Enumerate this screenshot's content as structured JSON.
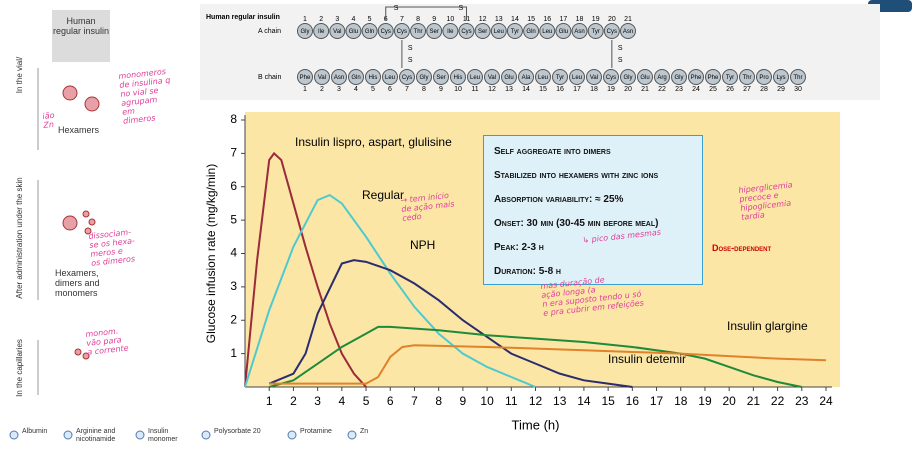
{
  "diagram": {
    "title": "Human regular insulin",
    "a_chain": {
      "label": "A chain",
      "residues": [
        "Gly",
        "Ile",
        "Val",
        "Glu",
        "Gln",
        "Cys",
        "Cys",
        "Thr",
        "Ser",
        "Ile",
        "Cys",
        "Ser",
        "Leu",
        "Tyr",
        "Gln",
        "Leu",
        "Glu",
        "Asn",
        "Tyr",
        "Cys",
        "Asn"
      ],
      "numbers": [
        1,
        2,
        3,
        4,
        5,
        6,
        7,
        8,
        9,
        10,
        11,
        12,
        13,
        14,
        15,
        16,
        17,
        18,
        19,
        20,
        21
      ]
    },
    "b_chain": {
      "label": "B chain",
      "residues": [
        "Phe",
        "Val",
        "Asn",
        "Gln",
        "His",
        "Leu",
        "Cys",
        "Gly",
        "Ser",
        "His",
        "Leu",
        "Val",
        "Glu",
        "Ala",
        "Leu",
        "Tyr",
        "Leu",
        "Val",
        "Cys",
        "Gly",
        "Glu",
        "Arg",
        "Gly",
        "Phe",
        "Phe",
        "Tyr",
        "Thr",
        "Pro",
        "Lys",
        "Thr"
      ],
      "numbers": [
        1,
        2,
        3,
        4,
        5,
        6,
        7,
        8,
        9,
        10,
        11,
        12,
        13,
        14,
        15,
        16,
        17,
        18,
        19,
        20,
        21,
        22,
        23,
        24,
        25,
        26,
        27,
        28,
        29,
        30
      ]
    },
    "disulfide": "S"
  },
  "left_panel": {
    "title": "Human regular insulin",
    "stage_labels": [
      "In the vial/",
      "After administration under the skin",
      "In the capillaries"
    ],
    "form_labels": [
      "Hexamers",
      "Hexamers, dimers and monomers"
    ],
    "legend_items": [
      "Albumin",
      "Arginine and nicotinamide",
      "Insulin monomer",
      "Polysorbate 20",
      "Protamine",
      "Zn"
    ]
  },
  "info_box": {
    "lines": [
      "Self aggregate into dimers",
      "Stabilized into hexamers with zinc ions",
      "Absorption variability: ≈ 25%",
      "Onset: 30 min (30-45 min before meal)",
      "Peak: 2-3 h",
      "Duration: 5-8 h"
    ],
    "bracket_label": "Dose-dependent"
  },
  "notes": [
    [
      "monomeros",
      "de insulina q",
      "no vial se",
      "agrupam",
      "em",
      "dimeros"
    ],
    [
      "ião",
      "Zn"
    ],
    [
      "dissociam-",
      "se os hexa-",
      "meros e",
      "os dimeros"
    ],
    [
      "monom.",
      "vão para",
      "a corrente"
    ],
    [
      "→ tem início",
      "de ação mais",
      "cedo"
    ],
    [
      "hiperglicemia",
      "precoce e",
      "hipoglicemia",
      "tardia"
    ],
    [
      "↳ pico das mesmas"
    ],
    [
      "mas duração de",
      "ação longa (a",
      "n era suposto tendo u só",
      "e pra cubrir em refeições"
    ]
  ],
  "chart_data": {
    "type": "line",
    "x_label": "Time (h)",
    "y_label": "Glucose infusion rate (mg/kg/min)",
    "xlim": [
      0,
      24
    ],
    "ylim": [
      0,
      8
    ],
    "xticks": [
      1,
      2,
      3,
      4,
      5,
      6,
      7,
      8,
      9,
      10,
      11,
      12,
      13,
      14,
      15,
      16,
      17,
      18,
      19,
      20,
      21,
      22,
      23,
      24
    ],
    "yticks": [
      1,
      2,
      3,
      4,
      5,
      6,
      7,
      8
    ],
    "background": "#fbe6a6",
    "series": [
      {
        "name": "Insulin lispro, aspart, glulisine",
        "color": "#9b2a3a",
        "x": [
          0,
          0.5,
          1,
          1.2,
          1.5,
          2,
          2.5,
          3,
          3.5,
          4,
          4.5,
          5
        ],
        "values": [
          0,
          3.8,
          6.8,
          7,
          6.8,
          5.5,
          4.2,
          3.0,
          1.9,
          1.0,
          0.4,
          0
        ]
      },
      {
        "name": "Regular",
        "color": "#4ec9d0",
        "x": [
          0,
          1,
          2,
          3,
          3.5,
          4,
          5,
          6,
          7,
          8,
          9,
          10,
          11,
          12
        ],
        "values": [
          0,
          2.3,
          4.2,
          5.6,
          5.75,
          5.5,
          4.5,
          3.4,
          2.4,
          1.6,
          1.0,
          0.6,
          0.3,
          0
        ]
      },
      {
        "name": "NPH",
        "color": "#2b2c6e",
        "x": [
          1,
          2,
          2.5,
          3,
          4,
          4.5,
          5,
          6,
          7,
          8,
          9,
          10,
          11,
          12,
          13,
          14,
          15,
          16
        ],
        "values": [
          0.1,
          0.4,
          1,
          2.2,
          3.7,
          3.8,
          3.75,
          3.5,
          3.1,
          2.6,
          2.0,
          1.5,
          1.0,
          0.7,
          0.4,
          0.2,
          0.1,
          0
        ]
      },
      {
        "name": "Insulin detemir",
        "color": "#1f8a3a",
        "x": [
          1,
          2,
          3,
          4,
          5,
          5.5,
          6,
          8,
          10,
          12,
          14,
          16,
          18,
          19,
          20,
          21,
          22,
          23
        ],
        "values": [
          0,
          0.2,
          0.7,
          1.2,
          1.6,
          1.8,
          1.8,
          1.7,
          1.55,
          1.45,
          1.35,
          1.2,
          1.0,
          0.85,
          0.6,
          0.35,
          0.15,
          0
        ]
      },
      {
        "name": "Insulin glargine",
        "color": "#e0822a",
        "x": [
          1,
          2,
          3,
          4,
          5,
          5.5,
          6,
          6.5,
          7,
          10,
          14,
          18,
          22,
          24
        ],
        "values": [
          0.1,
          0.1,
          0.1,
          0.1,
          0.1,
          0.3,
          0.9,
          1.2,
          1.25,
          1.2,
          1.1,
          1.0,
          0.85,
          0.8
        ]
      }
    ]
  }
}
